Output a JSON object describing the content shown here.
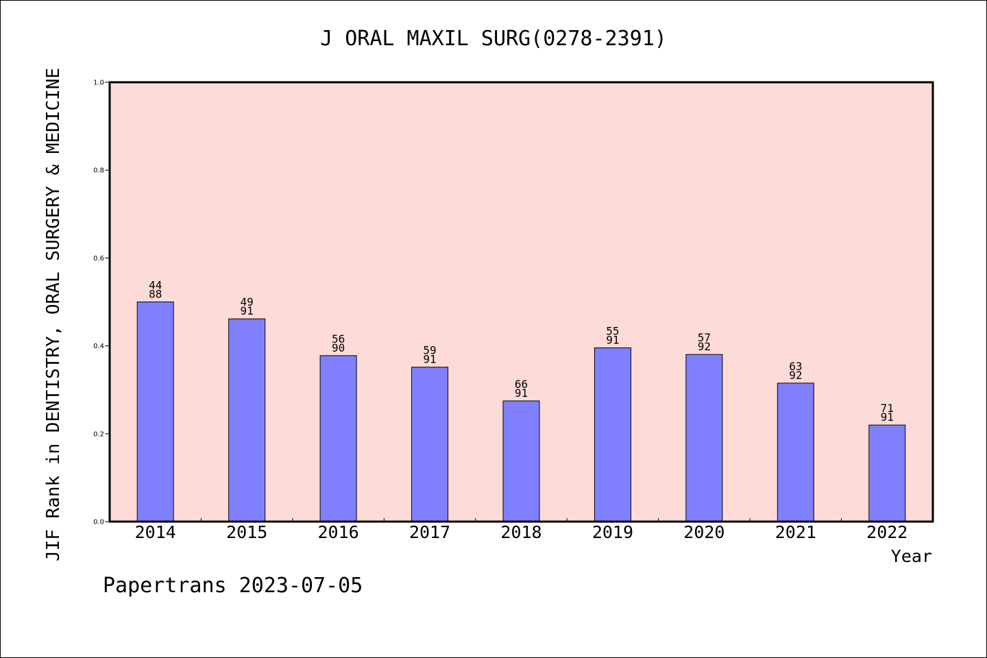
{
  "chart_data": {
    "type": "bar",
    "title": "J ORAL MAXIL SURG(0278-2391)",
    "ylabel": "JIF Rank in DENTISTRY, ORAL SURGERY & MEDICINE",
    "xlabel": "Year",
    "footer": "Papertrans 2023-07-05",
    "categories": [
      "2014",
      "2015",
      "2016",
      "2017",
      "2018",
      "2019",
      "2020",
      "2021",
      "2022"
    ],
    "values": [
      0.5,
      0.4615,
      0.3778,
      0.3516,
      0.2747,
      0.3956,
      0.3804,
      0.3152,
      0.2198
    ],
    "rank_labels": [
      [
        "44",
        "88"
      ],
      [
        "49",
        "91"
      ],
      [
        "56",
        "90"
      ],
      [
        "59",
        "91"
      ],
      [
        "66",
        "91"
      ],
      [
        "55",
        "91"
      ],
      [
        "57",
        "92"
      ],
      [
        "63",
        "92"
      ],
      [
        "71",
        "91"
      ]
    ],
    "ylim": [
      0,
      1.0
    ],
    "yticks": [
      "0.0",
      "0.2",
      "0.4",
      "0.6",
      "0.8",
      "1.0"
    ],
    "grid": false,
    "colors": {
      "bar": "#8080ff",
      "plot_background": "#fddbd8",
      "axis": "#000000"
    }
  }
}
